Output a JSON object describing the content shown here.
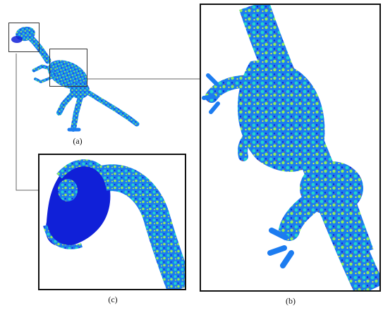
{
  "figure": {
    "panels": [
      {
        "id": "a",
        "caption": "(a)"
      },
      {
        "id": "b",
        "caption": "(b)"
      },
      {
        "id": "c",
        "caption": "(c)"
      }
    ],
    "colormap": {
      "low": "#1020d8",
      "mid_low": "#1c7cf0",
      "mid": "#23d6c8",
      "mid_high": "#8cf05a",
      "high": "#e0f040",
      "peak": "#e83a20"
    },
    "frame_color": "#111111",
    "connector_color": "#666666"
  }
}
